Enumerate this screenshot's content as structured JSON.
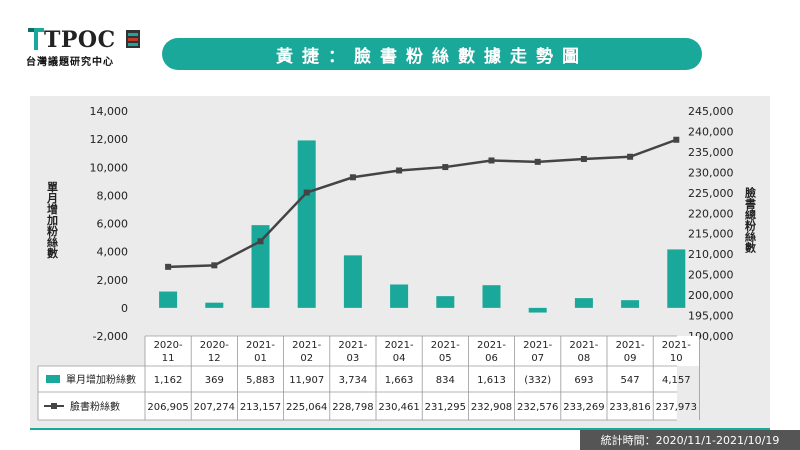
{
  "logo": {
    "name": "TPOC",
    "sub": "台灣議題研究中心"
  },
  "title": "黃捷：臉書粉絲數據走勢圖",
  "footer": "統計時間：2020/11/1-2021/10/19",
  "colors": {
    "accent": "#1aa89b",
    "line": "#444444",
    "panel": "#ebebeb"
  },
  "chart_data": {
    "type": "bar+line",
    "categories": [
      [
        "2020-",
        "11"
      ],
      [
        "2020-",
        "12"
      ],
      [
        "2021-",
        "01"
      ],
      [
        "2021-",
        "02"
      ],
      [
        "2021-",
        "03"
      ],
      [
        "2021-",
        "04"
      ],
      [
        "2021-",
        "05"
      ],
      [
        "2021-",
        "06"
      ],
      [
        "2021-",
        "07"
      ],
      [
        "2021-",
        "08"
      ],
      [
        "2021-",
        "09"
      ],
      [
        "2021-",
        "10"
      ]
    ],
    "series": [
      {
        "name": "單月增加粉絲數",
        "type": "bar",
        "axis": "left",
        "color": "#1aa89b",
        "values": [
          1162,
          369,
          5883,
          11907,
          3734,
          1663,
          834,
          1613,
          -332,
          693,
          547,
          4157
        ],
        "labels": [
          "1,162",
          "369",
          "5,883",
          "11,907",
          "3,734",
          "1,663",
          "834",
          "1,613",
          "(332)",
          "693",
          "547",
          "4,157"
        ]
      },
      {
        "name": "臉書粉絲數",
        "type": "line",
        "axis": "right",
        "color": "#444444",
        "values": [
          206905,
          207274,
          213157,
          225064,
          228798,
          230461,
          231295,
          232908,
          232576,
          233269,
          233816,
          237973
        ],
        "labels": [
          "206,905",
          "207,274",
          "213,157",
          "225,064",
          "228,798",
          "230,461",
          "231,295",
          "232,908",
          "232,576",
          "233,269",
          "233,816",
          "237,973"
        ]
      }
    ],
    "ylabel_left": "單月增加粉絲數",
    "ylabel_right": "臉書總粉絲數",
    "ylim_left": [
      -2000,
      14000
    ],
    "ylim_right": [
      190000,
      245000
    ],
    "ticks_left": [
      "-2,000",
      "0",
      "2,000",
      "4,000",
      "6,000",
      "8,000",
      "10,000",
      "12,000",
      "14,000"
    ],
    "ticks_right": [
      "190,000",
      "195,000",
      "200,000",
      "205,000",
      "210,000",
      "215,000",
      "220,000",
      "225,000",
      "230,000",
      "235,000",
      "240,000",
      "245,000"
    ],
    "grid": false,
    "legend": "data-table"
  }
}
